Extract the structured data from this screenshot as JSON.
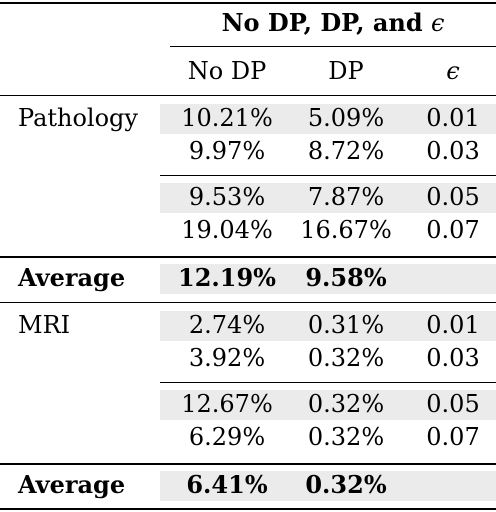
{
  "table": {
    "group_header_text": "No DP, DP, and ",
    "epsilon_symbol": "ϵ",
    "columns": [
      "No DP",
      "DP",
      "ϵ"
    ],
    "pathology": {
      "label": "Pathology",
      "rows": [
        [
          "10.21%",
          "5.09%",
          "0.01"
        ],
        [
          "9.97%",
          "8.72%",
          "0.03"
        ],
        [
          "9.53%",
          "7.87%",
          "0.05"
        ],
        [
          "19.04%",
          "16.67%",
          "0.07"
        ]
      ],
      "average_label": "Average",
      "average": [
        "12.19%",
        "9.58%"
      ]
    },
    "mri": {
      "label": "MRI",
      "rows": [
        [
          "2.74%",
          "0.31%",
          "0.01"
        ],
        [
          "3.92%",
          "0.32%",
          "0.03"
        ],
        [
          "12.67%",
          "0.32%",
          "0.05"
        ],
        [
          "6.29%",
          "0.32%",
          "0.07"
        ]
      ],
      "average_label": "Average",
      "average": [
        "6.41%",
        "0.32%"
      ]
    }
  }
}
